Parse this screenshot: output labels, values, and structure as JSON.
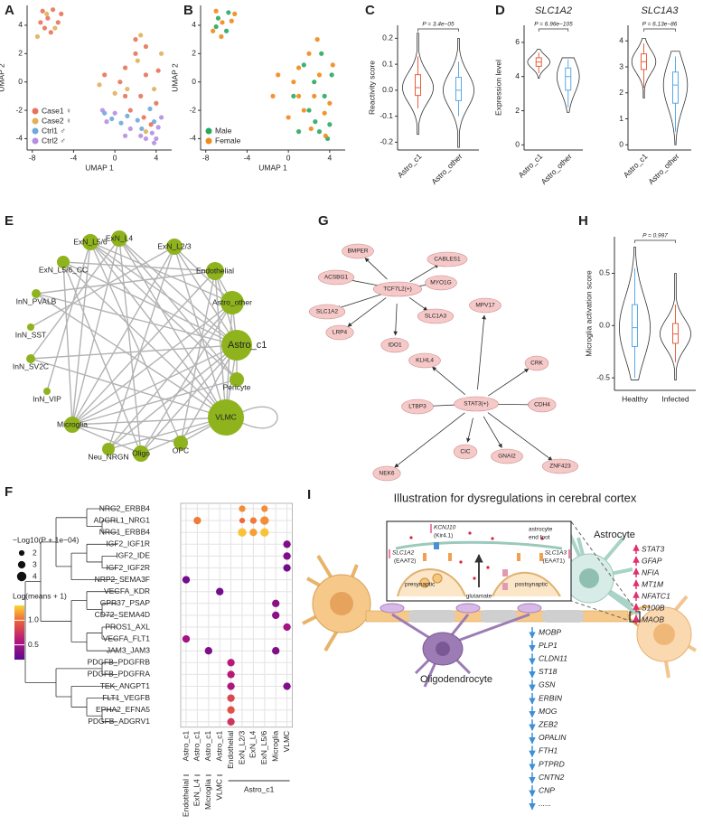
{
  "panel_labels": [
    "A",
    "B",
    "C",
    "D",
    "E",
    "F",
    "G",
    "H",
    "I"
  ],
  "chart_data": [
    {
      "type": "scatter",
      "x_label": "UMAP 1",
      "y_label": "UMAP 2",
      "xlim": [
        -8.5,
        5.5
      ],
      "xticks": [
        -8,
        -4,
        0,
        4
      ],
      "ylim": [
        -4.8,
        5.4
      ],
      "yticks": [
        -4,
        -2,
        0,
        2,
        4
      ],
      "legend": "lower left",
      "series": [
        {
          "name": "Case1 ♀",
          "color": "#e8735a",
          "x": [
            -7,
            -6.5,
            -6,
            -5.5,
            -6.8,
            -5.2,
            -6.2,
            -7.2,
            1,
            2,
            3,
            2.5,
            1.5,
            3.5,
            4,
            0.5,
            -1,
            2,
            3,
            1,
            4.2,
            2.8
          ],
          "y": [
            5,
            4.5,
            5.1,
            4.2,
            3.8,
            4.8,
            3.5,
            4.2,
            1,
            2,
            0.5,
            -1,
            -2,
            -3,
            -1.5,
            0,
            0.5,
            3,
            2.5,
            -1,
            0.8,
            -2.5
          ]
        },
        {
          "name": "Case2 ♀",
          "color": "#e0b15a",
          "x": [
            -6.6,
            -5.8,
            -7.5,
            2.2,
            3.8,
            1.2,
            0,
            3,
            -1.5,
            4.5,
            2.5
          ],
          "y": [
            4.8,
            3.8,
            3.2,
            1.5,
            -0.5,
            -0.5,
            -0.8,
            -3.5,
            -0.2,
            2,
            3.3
          ]
        },
        {
          "name": "Ctrl1 ♂",
          "color": "#6fa8dc",
          "x": [
            -0.3,
            1.2,
            2.2,
            3.4,
            -1,
            0.6,
            3.8,
            2.6
          ],
          "y": [
            -2.6,
            -2.4,
            -2.7,
            -1.9,
            -2.2,
            -2.9,
            -2.8,
            -3.3
          ]
        },
        {
          "name": "Ctrl2 ♂",
          "color": "#b48fe0",
          "x": [
            3,
            3.6,
            4.2,
            2.5,
            -1.2,
            0,
            1.5,
            4,
            4.5,
            1,
            -0.8,
            3.8
          ],
          "y": [
            -4,
            -3.6,
            -3.2,
            -3.8,
            -2,
            -2.2,
            -3.3,
            -4,
            -2.5,
            -3.8,
            -2.8,
            -4.3
          ]
        }
      ]
    },
    {
      "type": "scatter",
      "x_label": "UMAP 1",
      "y_label": "UMAP 2",
      "xlim": [
        -8.5,
        5.5
      ],
      "xticks": [
        -8,
        -4,
        0,
        4
      ],
      "ylim": [
        -4.8,
        5.4
      ],
      "yticks": [
        -4,
        -2,
        0,
        2,
        4
      ],
      "legend": "lower left",
      "series": [
        {
          "name": "Male",
          "color": "#2aa860",
          "x": [
            -6.8,
            -5.8,
            -6,
            -7,
            1.5,
            2.5,
            3.5,
            3,
            4,
            2,
            0.5,
            4.2,
            3.2,
            1,
            3.8,
            2.6
          ],
          "y": [
            4.5,
            4.9,
            3.6,
            3.9,
            1.2,
            0,
            -1,
            -3.5,
            -3,
            -2,
            -1,
            0.5,
            2,
            -3.5,
            -4,
            -2.8
          ]
        },
        {
          "name": "Female",
          "color": "#f08a1a",
          "x": [
            -7,
            -6.4,
            -5.5,
            -6.5,
            -5.2,
            -7.3,
            1,
            2,
            3,
            2.5,
            1.5,
            3.5,
            4,
            0.5,
            -1,
            2.8,
            1,
            4.3,
            -1.5,
            0,
            2.2,
            3.6
          ],
          "y": [
            5,
            4.2,
            4.3,
            3.2,
            4.8,
            3.6,
            1,
            2,
            0.5,
            -1,
            -2,
            -2.2,
            -1.5,
            0,
            0.5,
            3,
            -1,
            1.2,
            -1,
            -2.5,
            -3.3,
            -3.8
          ]
        }
      ]
    },
    {
      "type": "violin",
      "y_label": "Reactivity score",
      "annotation": "P = 3.4e−05",
      "categories": [
        "Astro_c1",
        "Astro_other"
      ],
      "colors": [
        "#e8603c",
        "#5aa9e6"
      ],
      "ylim": [
        -0.23,
        0.25
      ],
      "yticks": [
        -0.2,
        -0.1,
        {
          "value": 0,
          "label": "0.0"
        },
        0.1,
        0.2
      ],
      "range": [
        [
          -0.17,
          0.22
        ],
        [
          -0.22,
          0.2
        ]
      ],
      "box": [
        [
          -0.07,
          -0.02,
          0.01,
          0.06,
          0.13
        ],
        [
          -0.1,
          -0.04,
          0,
          0.05,
          0.11
        ]
      ]
    },
    {
      "type": "violin",
      "title": "SLC1A2",
      "y_label": "Expression level",
      "annotation": "P = 6.96e−105",
      "categories": [
        "Astro_c1",
        "Astro_other"
      ],
      "colors": [
        "#e8603c",
        "#5aa9e6"
      ],
      "ylim": [
        -0.3,
        7
      ],
      "yticks": [
        0,
        2,
        4,
        6
      ],
      "range": [
        [
          3.9,
          5.6
        ],
        [
          1.9,
          5.1
        ]
      ],
      "box": [
        [
          4.2,
          4.6,
          4.85,
          5.1,
          5.4
        ],
        [
          2.2,
          3.2,
          4,
          4.5,
          5
        ]
      ]
    },
    {
      "type": "violin",
      "title": "SLC1A3",
      "annotation": "P = 6.13e−86",
      "categories": [
        "Astro_c1",
        "Astro_other"
      ],
      "colors": [
        "#e8603c",
        "#5aa9e6"
      ],
      "ylim": [
        -0.2,
        4.6
      ],
      "yticks": [
        0,
        1,
        2,
        3,
        4
      ],
      "range": [
        [
          1.8,
          4.1
        ],
        [
          0,
          3.6
        ]
      ],
      "box": [
        [
          2.2,
          2.9,
          3.2,
          3.5,
          3.9
        ],
        [
          0.5,
          1.6,
          2.3,
          2.8,
          3.4
        ]
      ]
    },
    {
      "type": "violin",
      "y_label": "Microglia activation score",
      "annotation": "P = 0.997",
      "categories": [
        "Healthy",
        "Infected"
      ],
      "colors": [
        "#5aa9e6",
        "#e8603c"
      ],
      "ylim": [
        -0.62,
        0.85
      ],
      "yticks": [
        -0.5,
        {
          "value": 0,
          "label": "0.0"
        },
        0.5
      ],
      "range": [
        [
          -0.52,
          0.75
        ],
        [
          -0.52,
          0.5
        ]
      ],
      "box": [
        [
          -0.5,
          -0.2,
          -0.02,
          0.2,
          0.55
        ],
        [
          -0.35,
          -0.17,
          -0.08,
          0.02,
          0.2
        ]
      ]
    },
    {
      "type": "dot",
      "rows": [
        "NRG2_ERBB4",
        "ADGRL1_NRG1",
        "NRG1_ERBB4",
        "IGF2_IGF1R",
        "IGF2_IDE",
        "IGF2_IGF2R",
        "NRP2_SEMA3F",
        "VEGFA_KDR",
        "GPR37_PSAP",
        "CD72_SEMA4D",
        "PROS1_AXL",
        "VEGFA_FLT1",
        "JAM3_JAM3",
        "PDGFB_PDGFRB",
        "PDGFB_PDGFRA",
        "TEK_ANGPT1",
        "FLT1_VEGFB",
        "EPHA2_EFNA5",
        "PDGFB_ADGRV1"
      ],
      "columns": [
        "Astro_c1",
        "Astro_c1",
        "Astro_c1",
        "Astro_c1",
        "Endothelial",
        "ExN_L2/3",
        "ExN_L4",
        "ExN_L5/6",
        "Microglia",
        "VLMC"
      ],
      "groups": [
        "Endothelial",
        "ExN_L4",
        "Microglia",
        "VLMC",
        "Astro_c1"
      ],
      "size_title": "−Log10(P + 1e−04)",
      "size_ticks": [
        2,
        3,
        4
      ],
      "color_title": "Log(means + 1)",
      "clim": [
        0.2,
        1.3
      ],
      "color_ticks": [
        0.5,
        {
          "value": 1,
          "label": "1.0"
        }
      ],
      "points": [
        {
          "row": 0,
          "col": 5,
          "size": 2.5,
          "color": 1.1
        },
        {
          "row": 0,
          "col": 7,
          "size": 2.5,
          "color": 1.1
        },
        {
          "row": 1,
          "col": 1,
          "size": 3,
          "color": 1.05
        },
        {
          "row": 1,
          "col": 5,
          "size": 2,
          "color": 1.0
        },
        {
          "row": 1,
          "col": 6,
          "size": 2.5,
          "color": 1.05
        },
        {
          "row": 1,
          "col": 7,
          "size": 3.5,
          "color": 1.1
        },
        {
          "row": 2,
          "col": 5,
          "size": 3.5,
          "color": 1.25
        },
        {
          "row": 2,
          "col": 6,
          "size": 3,
          "color": 1.15
        },
        {
          "row": 2,
          "col": 7,
          "size": 3.5,
          "color": 1.25
        },
        {
          "row": 3,
          "col": 9,
          "size": 3,
          "color": 0.35
        },
        {
          "row": 4,
          "col": 9,
          "size": 3,
          "color": 0.35
        },
        {
          "row": 5,
          "col": 9,
          "size": 3,
          "color": 0.3
        },
        {
          "row": 6,
          "col": 0,
          "size": 3,
          "color": 0.3
        },
        {
          "row": 7,
          "col": 3,
          "size": 3,
          "color": 0.3
        },
        {
          "row": 8,
          "col": 8,
          "size": 3,
          "color": 0.4
        },
        {
          "row": 9,
          "col": 8,
          "size": 3,
          "color": 0.4
        },
        {
          "row": 10,
          "col": 9,
          "size": 3,
          "color": 0.5
        },
        {
          "row": 11,
          "col": 0,
          "size": 3,
          "color": 0.5
        },
        {
          "row": 12,
          "col": 2,
          "size": 3,
          "color": 0.35
        },
        {
          "row": 12,
          "col": 8,
          "size": 3,
          "color": 0.35
        },
        {
          "row": 13,
          "col": 4,
          "size": 3,
          "color": 0.6
        },
        {
          "row": 14,
          "col": 4,
          "size": 3,
          "color": 0.6
        },
        {
          "row": 15,
          "col": 4,
          "size": 3,
          "color": 0.55
        },
        {
          "row": 15,
          "col": 9,
          "size": 3,
          "color": 0.35
        },
        {
          "row": 16,
          "col": 4,
          "size": 3,
          "color": 0.85
        },
        {
          "row": 17,
          "col": 4,
          "size": 3,
          "color": 0.9
        },
        {
          "row": 18,
          "col": 4,
          "size": 3,
          "color": 0.75
        }
      ]
    }
  ],
  "network_e": {
    "nodes": [
      "Astro_c1",
      "Astro_other",
      "Endothelial",
      "ExN_L2/3",
      "ExN_L4",
      "ExN_L5/6",
      "ExN_L5/6_CC",
      "InN_PVALB",
      "InN_SST",
      "InN_SV2C",
      "InN_VIP",
      "Microglia",
      "Neu_NRGN",
      "Oligo",
      "OPC",
      "VLMC",
      "Pericyte"
    ],
    "edges": [
      [
        0,
        1
      ],
      [
        0,
        2
      ],
      [
        0,
        3
      ],
      [
        0,
        4
      ],
      [
        0,
        5
      ],
      [
        0,
        6
      ],
      [
        0,
        7
      ],
      [
        0,
        9
      ],
      [
        0,
        11
      ],
      [
        0,
        12
      ],
      [
        0,
        13
      ],
      [
        0,
        14
      ],
      [
        0,
        15
      ],
      [
        0,
        16
      ],
      [
        1,
        2
      ],
      [
        1,
        3
      ],
      [
        1,
        5
      ],
      [
        1,
        11
      ],
      [
        1,
        15
      ],
      [
        1,
        13
      ],
      [
        2,
        15
      ],
      [
        2,
        11
      ],
      [
        2,
        6
      ],
      [
        2,
        7
      ],
      [
        3,
        15
      ],
      [
        3,
        11
      ],
      [
        3,
        8
      ],
      [
        4,
        15
      ],
      [
        4,
        11
      ],
      [
        4,
        9
      ],
      [
        5,
        15
      ],
      [
        5,
        11
      ],
      [
        5,
        10
      ],
      [
        6,
        15
      ],
      [
        6,
        11
      ],
      [
        7,
        15
      ],
      [
        9,
        15
      ],
      [
        11,
        15
      ],
      [
        11,
        13
      ],
      [
        11,
        14
      ],
      [
        12,
        15
      ],
      [
        13,
        15
      ],
      [
        14,
        15
      ],
      [
        16,
        11
      ],
      [
        16,
        4
      ],
      [
        16,
        5
      ],
      [
        3,
        12
      ],
      [
        4,
        13
      ],
      [
        5,
        14
      ],
      [
        6,
        13
      ],
      [
        2,
        14
      ],
      [
        1,
        12
      ],
      [
        15,
        15
      ]
    ]
  },
  "network_g": {
    "nodes": [
      "TCF7L2(+)",
      "BMPER",
      "CABLES1",
      "ACSBG1",
      "MYO1G",
      "SLC1A2",
      "SLC1A3",
      "LRP4",
      "IDO1",
      "STAT3(+)",
      "MPV17",
      "CRK",
      "KLHL4",
      "CDH4",
      "LTBP3",
      "GNAI2",
      "CIC",
      "NEK6",
      "ZNF423"
    ],
    "edges": [
      [
        0,
        1
      ],
      [
        0,
        2
      ],
      [
        0,
        3
      ],
      [
        0,
        4
      ],
      [
        0,
        5
      ],
      [
        0,
        6
      ],
      [
        0,
        7
      ],
      [
        0,
        8
      ],
      [
        9,
        10
      ],
      [
        9,
        11
      ],
      [
        9,
        12
      ],
      [
        9,
        13
      ],
      [
        9,
        14
      ],
      [
        9,
        15
      ],
      [
        9,
        16
      ],
      [
        9,
        17
      ],
      [
        9,
        18
      ]
    ]
  },
  "illustration": {
    "title": "Illustration for dysregulations in cerebral cortex",
    "astrocyte": "Astrocyte",
    "oligodendrocyte": "Oligodendrocyte",
    "end_foot": [
      "astrocyte",
      "end foot"
    ],
    "presynaptic": "presynaptic",
    "postsynaptic": "postsynaptic",
    "glutamate": "glutamate",
    "kcnj10": [
      "KCNJ10",
      "(Kir4.1)"
    ],
    "slc1a2": [
      "SLC1A2",
      "(EAAT2)"
    ],
    "slc1a3": [
      "SLC1A3",
      "(EAAT1)"
    ],
    "up_genes": [
      "STAT3",
      "GFAP",
      "NFIA",
      "MT1M",
      "NFATC1",
      "S100B",
      "MAOB"
    ],
    "down_genes": [
      "MOBP",
      "PLP1",
      "CLDN11",
      "ST18",
      "GSN",
      "ERBIN",
      "MOG",
      "ZEB2",
      "OPALIN",
      "FTH1",
      "PTPRD",
      "CNTN2",
      "CNP",
      "......"
    ]
  }
}
